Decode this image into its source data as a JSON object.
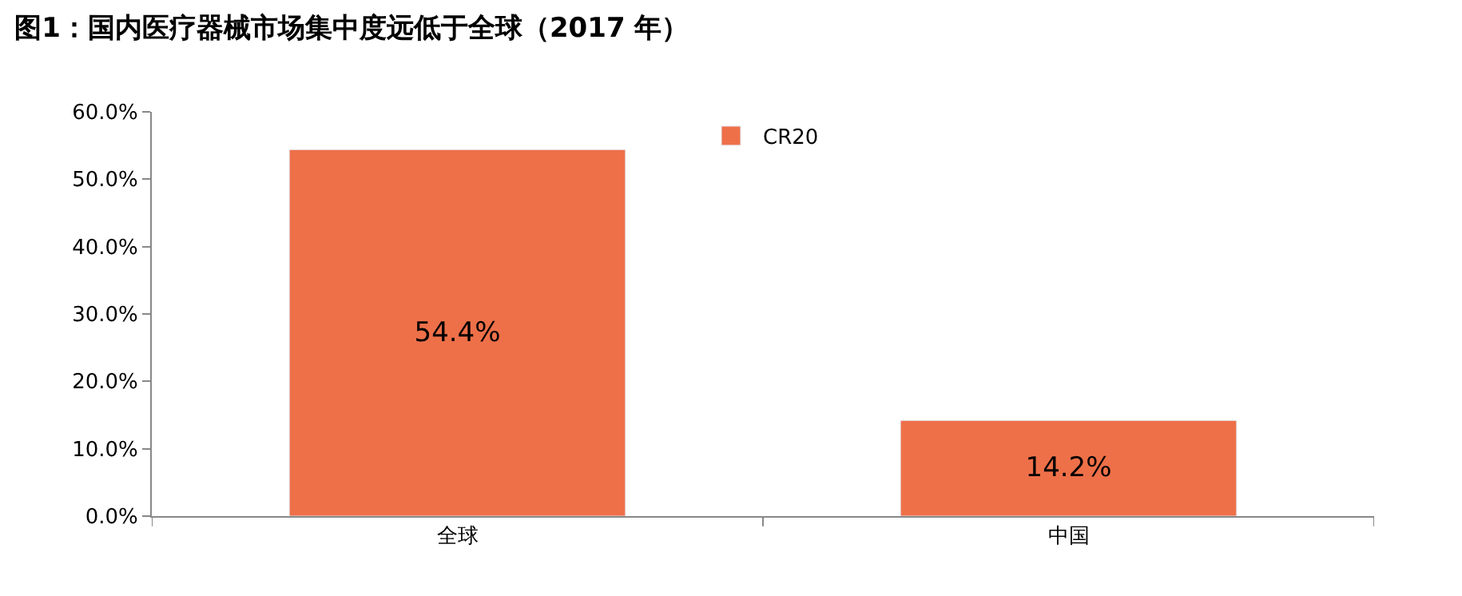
{
  "chart_data": {
    "type": "bar",
    "title": "图1：国内医疗器械市场集中度远低于全球（2017 年）",
    "categories": [
      "全球",
      "中国"
    ],
    "series": [
      {
        "name": "CR20",
        "color": "#ee7049",
        "values": [
          54.4,
          14.2
        ],
        "value_labels": [
          "54.4%",
          "14.2%"
        ]
      }
    ],
    "ylim": [
      0,
      60
    ],
    "yticks": [
      {
        "value": 0,
        "label": "0.0%"
      },
      {
        "value": 10,
        "label": "10.0%"
      },
      {
        "value": 20,
        "label": "20.0%"
      },
      {
        "value": 30,
        "label": "30.0%"
      },
      {
        "value": 40,
        "label": "40.0%"
      },
      {
        "value": 50,
        "label": "50.0%"
      },
      {
        "value": 60,
        "label": "60.0%"
      }
    ],
    "legend": "top"
  }
}
